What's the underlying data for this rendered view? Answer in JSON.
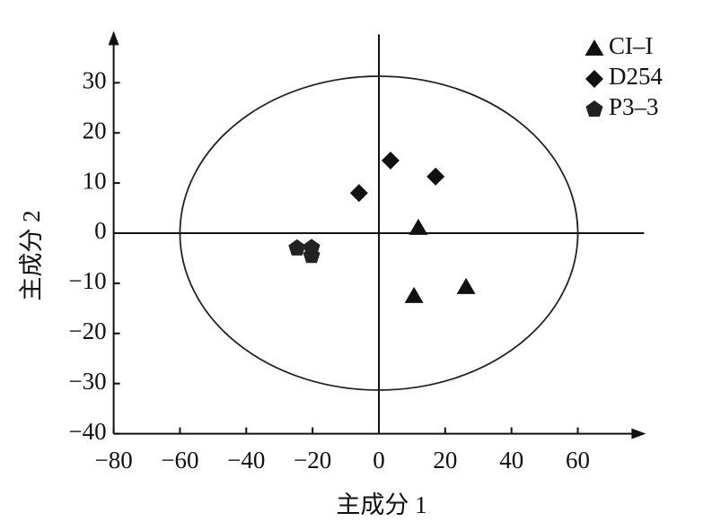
{
  "chart_data": {
    "type": "scatter",
    "xlabel": "主成分 1",
    "ylabel": "主成分 2",
    "xlim": [
      -80,
      80
    ],
    "ylim": [
      -40,
      40
    ],
    "xticks": [
      {
        "value": -80,
        "label": "−80"
      },
      {
        "value": -60,
        "label": "−60"
      },
      {
        "value": -40,
        "label": "−40"
      },
      {
        "value": -20,
        "label": "−20"
      },
      0,
      20,
      40,
      60
    ],
    "yticks": [
      {
        "value": -40,
        "label": "−40"
      },
      {
        "value": -30,
        "label": "−30"
      },
      {
        "value": -20,
        "label": "−20"
      },
      {
        "value": -10,
        "label": "−10"
      },
      0,
      10,
      20,
      30
    ],
    "ellipse_radii": [
      60,
      31.3
    ],
    "legend": "top-right",
    "series": [
      {
        "name": "CI–I",
        "color": "#111111",
        "marker": "triangle",
        "x": [
          11.9,
          10.6,
          26.3
        ],
        "values": [
          1.1,
          -12.5,
          -10.7
        ]
      },
      {
        "name": "D254",
        "color": "#111111",
        "marker": "diamond",
        "x": [
          3.5,
          17.1,
          -6
        ],
        "values": [
          14.5,
          11.3,
          8
        ]
      },
      {
        "name": "P3–3",
        "color": "#222222",
        "marker": "pentagon",
        "x": [
          -24.7,
          -20.3,
          -20.3
        ],
        "values": [
          -3,
          -2.9,
          -4.5
        ]
      }
    ]
  }
}
